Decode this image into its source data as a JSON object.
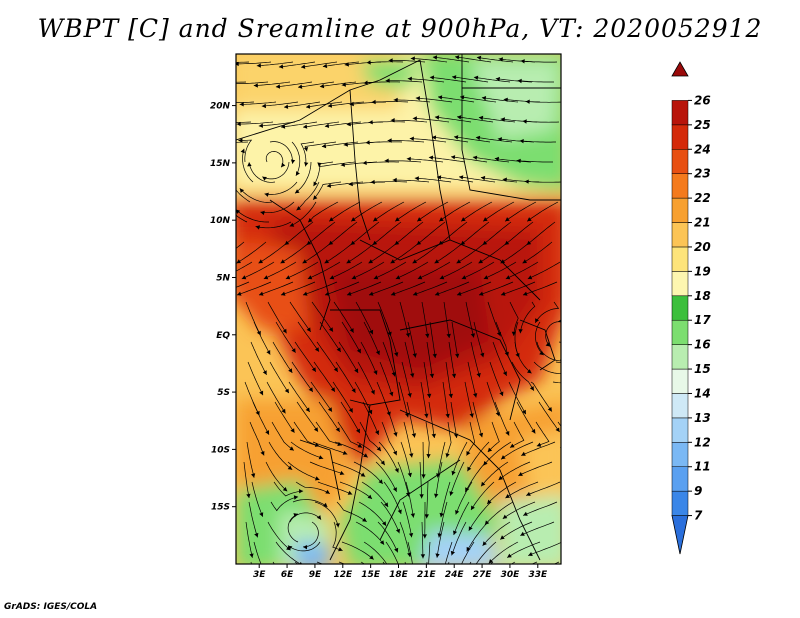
{
  "title": "WBPT [C] and Sreamline at 900hPa, VT: 2020052912",
  "credit": "GrADS: IGES/COLA",
  "map": {
    "variable": "WBPT",
    "unit": "C",
    "level": "900hPa",
    "valid_time": "2020052912",
    "lat_labels": [
      "20N",
      "15N",
      "10N",
      "5N",
      "EQ",
      "5S",
      "10S",
      "15S"
    ],
    "lat_values": [
      20,
      15,
      10,
      5,
      0,
      -5,
      -10,
      -15
    ],
    "lon_labels": [
      "3E",
      "6E",
      "9E",
      "12E",
      "15E",
      "18E",
      "21E",
      "24E",
      "27E",
      "30E",
      "33E"
    ],
    "lon_values": [
      3,
      6,
      9,
      12,
      15,
      18,
      21,
      24,
      27,
      30,
      33
    ],
    "lon_range": [
      0.5,
      35.5
    ],
    "lat_range": [
      -20,
      24.5
    ]
  },
  "colorbar": {
    "levels": [
      "7",
      "9",
      "11",
      "12",
      "13",
      "14",
      "15",
      "16",
      "17",
      "18",
      "19",
      "20",
      "21",
      "22",
      "23",
      "24",
      "25",
      "26"
    ],
    "colors": [
      "#2a6fdc",
      "#3a86e8",
      "#5aa0f0",
      "#7ab8f4",
      "#a4d2f6",
      "#cfe9f6",
      "#e8f8e8",
      "#b8edb0",
      "#7cde70",
      "#3cbf3c",
      "#fdf6b0",
      "#fde47a",
      "#fbc456",
      "#f7a030",
      "#f47a1c",
      "#e85012",
      "#d42a0a",
      "#b8140a",
      "#9a0a0a"
    ]
  }
}
